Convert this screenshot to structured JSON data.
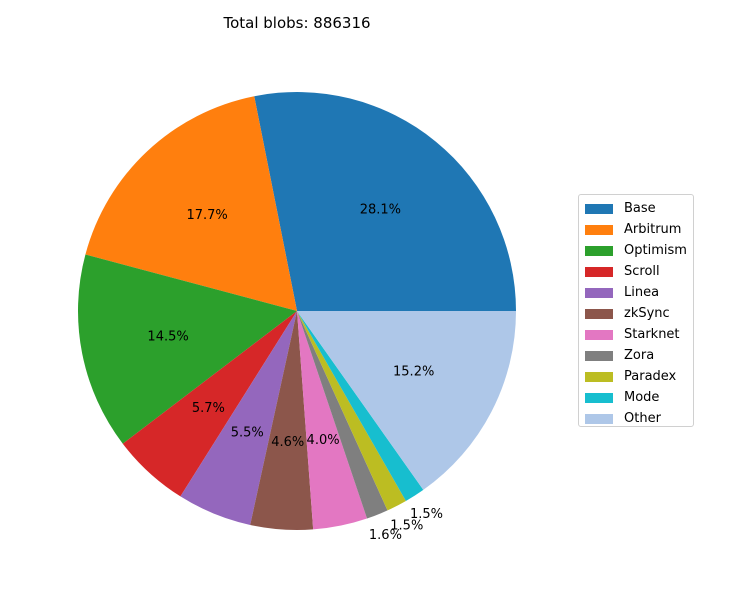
{
  "chart_data": {
    "type": "pie",
    "title": "Total blobs: 886316",
    "legend_position": "right",
    "start_angle_deg": 0,
    "direction": "counterclockwise",
    "slices": [
      {
        "label": "Base",
        "value": 28.1,
        "pct_label": "28.1%",
        "color": "#1f77b4"
      },
      {
        "label": "Arbitrum",
        "value": 17.7,
        "pct_label": "17.7%",
        "color": "#ff7f0e"
      },
      {
        "label": "Optimism",
        "value": 14.5,
        "pct_label": "14.5%",
        "color": "#2ca02c"
      },
      {
        "label": "Scroll",
        "value": 5.7,
        "pct_label": "5.7%",
        "color": "#d62728"
      },
      {
        "label": "Linea",
        "value": 5.5,
        "pct_label": "5.5%",
        "color": "#9467bd"
      },
      {
        "label": "zkSync",
        "value": 4.6,
        "pct_label": "4.6%",
        "color": "#8c564b"
      },
      {
        "label": "Starknet",
        "value": 4.0,
        "pct_label": "4.0%",
        "color": "#e377c2"
      },
      {
        "label": "Zora",
        "value": 1.6,
        "pct_label": "1.6%",
        "color": "#7f7f7f"
      },
      {
        "label": "Paradex",
        "value": 1.5,
        "pct_label": "1.5%",
        "color": "#bcbd22"
      },
      {
        "label": "Mode",
        "value": 1.5,
        "pct_label": "1.5%",
        "color": "#17becf"
      },
      {
        "label": "Other",
        "value": 15.2,
        "pct_label": "15.2%",
        "color": "#aec7e8"
      }
    ]
  }
}
